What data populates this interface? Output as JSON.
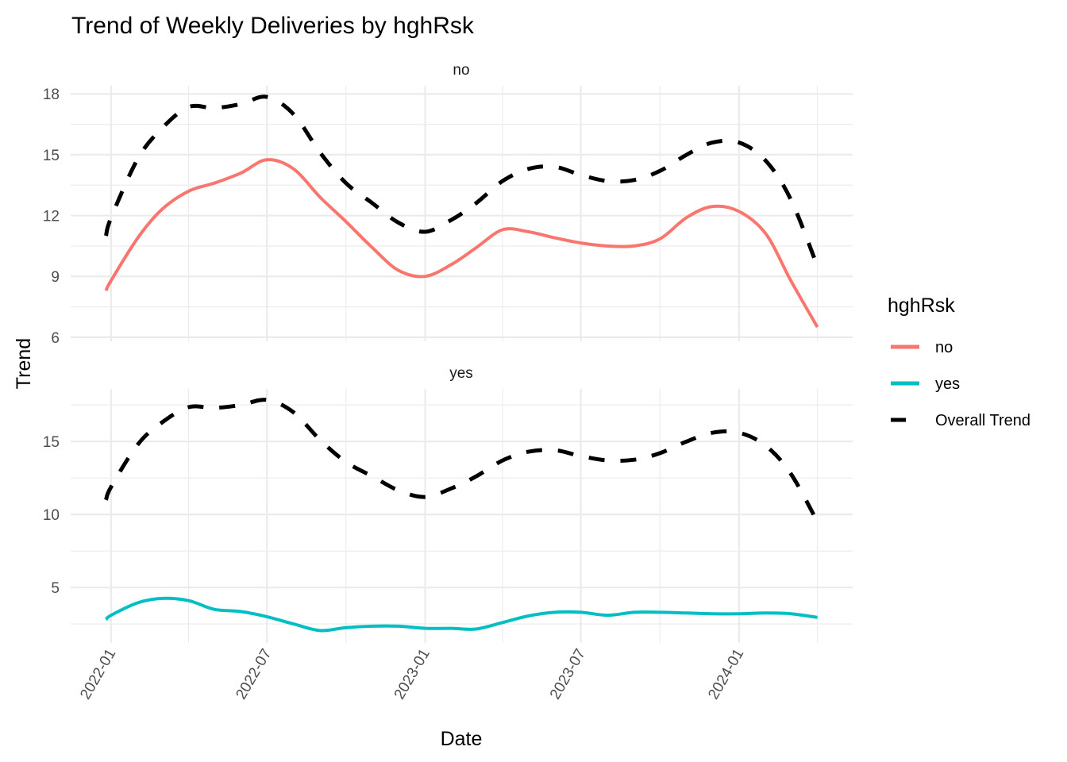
{
  "chart_data": {
    "type": "line",
    "title": "Trend of Weekly Deliveries by hghRsk",
    "xlabel": "Date",
    "ylabel": "Trend",
    "x_tick_labels": [
      "2022-01",
      "2022-07",
      "2023-01",
      "2023-07",
      "2024-01"
    ],
    "x_tick_dates": [
      "2022-01-01",
      "2022-07-01",
      "2023-01-01",
      "2023-07-01",
      "2024-01-01"
    ],
    "x_minor_dates": [
      "2021-10-01",
      "2022-04-01",
      "2022-10-01",
      "2023-04-01",
      "2023-10-01",
      "2024-04-01"
    ],
    "xlim": [
      "2021-11-02",
      "2024-05-14"
    ],
    "grid": true,
    "legend": {
      "title": "hghRsk",
      "position": "right",
      "entries": [
        {
          "label": "no",
          "color": "#F8766D",
          "style": "solid"
        },
        {
          "label": "yes",
          "color": "#00BFC4",
          "style": "solid"
        },
        {
          "label": "Overall Trend",
          "color": "#000000",
          "style": "dashed"
        }
      ]
    },
    "x": [
      "2021-12-26",
      "2022-01-01",
      "2022-02-01",
      "2022-03-01",
      "2022-04-01",
      "2022-05-01",
      "2022-06-01",
      "2022-07-01",
      "2022-08-01",
      "2022-09-01",
      "2022-10-01",
      "2022-11-01",
      "2022-12-01",
      "2023-01-01",
      "2023-02-01",
      "2023-03-01",
      "2023-04-01",
      "2023-05-01",
      "2023-06-01",
      "2023-07-01",
      "2023-08-01",
      "2023-09-01",
      "2023-10-01",
      "2023-11-01",
      "2023-12-01",
      "2024-01-01",
      "2024-02-01",
      "2024-03-01",
      "2024-04-01"
    ],
    "overall_trend": [
      11.0,
      11.9,
      14.8,
      16.3,
      17.35,
      17.3,
      17.5,
      17.85,
      17.0,
      15.1,
      13.6,
      12.6,
      11.65,
      11.2,
      11.8,
      12.6,
      13.7,
      14.3,
      14.4,
      14.0,
      13.7,
      13.75,
      14.2,
      15.0,
      15.6,
      15.6,
      14.7,
      12.8,
      9.5
    ],
    "panels": [
      {
        "strip": "no",
        "ylim": [
          5.8,
          18.4
        ],
        "y_ticks": [
          6,
          9,
          12,
          15,
          18
        ],
        "y_minor": [
          7.5,
          10.5,
          13.5,
          16.5
        ],
        "series": [
          {
            "name": "no",
            "color": "#F8766D",
            "values": [
              8.3,
              8.8,
              10.9,
              12.3,
              13.2,
              13.6,
              14.1,
              14.75,
              14.3,
              12.9,
              11.7,
              10.4,
              9.3,
              9.0,
              9.6,
              10.4,
              11.3,
              11.2,
              10.9,
              10.65,
              10.5,
              10.5,
              10.85,
              11.9,
              12.45,
              12.2,
              11.1,
              8.8,
              6.5
            ]
          },
          {
            "name": "Overall Trend",
            "color": "#000000",
            "dashed": true,
            "ref": "overall_trend"
          }
        ]
      },
      {
        "strip": "yes",
        "ylim": [
          1.2,
          18.6
        ],
        "y_ticks": [
          5,
          10,
          15
        ],
        "y_minor": [
          2.5,
          7.5,
          12.5,
          17.5
        ],
        "series": [
          {
            "name": "yes",
            "color": "#00BFC4",
            "values": [
              2.8,
              3.1,
              3.95,
              4.25,
              4.1,
              3.5,
              3.35,
              3.0,
              2.5,
              2.05,
              2.25,
              2.35,
              2.35,
              2.2,
              2.2,
              2.15,
              2.6,
              3.05,
              3.3,
              3.3,
              3.1,
              3.3,
              3.3,
              3.25,
              3.2,
              3.2,
              3.25,
              3.2,
              2.95
            ]
          },
          {
            "name": "Overall Trend",
            "color": "#000000",
            "dashed": true,
            "ref": "overall_trend"
          }
        ]
      }
    ]
  }
}
